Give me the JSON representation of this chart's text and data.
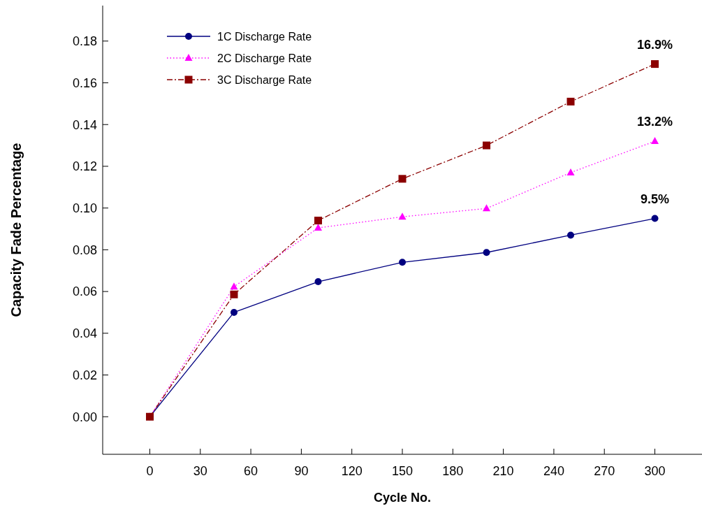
{
  "chart_data": {
    "type": "line",
    "xlabel": "Cycle No.",
    "ylabel": "Capacity Fade Percentage",
    "x": [
      0,
      50,
      100,
      150,
      200,
      250,
      300
    ],
    "series": [
      {
        "name": "1C Discharge Rate",
        "color": "#000080",
        "marker": "circle",
        "line_style": "solid",
        "values": [
          0,
          0.05,
          0.0647,
          0.074,
          0.0787,
          0.087,
          0.095
        ],
        "value_labels": [
          null,
          null,
          null,
          null,
          null,
          null,
          "9.5%"
        ]
      },
      {
        "name": "2C Discharge Rate",
        "color": "#ff00ff",
        "marker": "triangle",
        "line_style": "dotted",
        "values": [
          0,
          0.0623,
          0.0905,
          0.0958,
          0.0998,
          0.117,
          0.132
        ],
        "value_labels": [
          null,
          null,
          null,
          null,
          null,
          null,
          "13.2%"
        ]
      },
      {
        "name": "3C Discharge Rate",
        "color": "#8b0000",
        "marker": "square",
        "line_style": "dashdot",
        "values": [
          0,
          0.0586,
          0.094,
          0.114,
          0.13,
          0.151,
          0.169
        ],
        "value_labels": [
          null,
          null,
          null,
          null,
          null,
          null,
          "16.9%"
        ]
      }
    ],
    "xlim": [
      -28,
      328
    ],
    "xticks": [
      0,
      30,
      60,
      90,
      120,
      150,
      180,
      210,
      240,
      270,
      300
    ],
    "ylim": [
      -0.018,
      0.197
    ],
    "yticks": [
      {
        "value": 0,
        "label": "0.00"
      },
      {
        "value": 0.02,
        "label": "0.02"
      },
      {
        "value": 0.04,
        "label": "0.04"
      },
      {
        "value": 0.06,
        "label": "0.06"
      },
      {
        "value": 0.08,
        "label": "0.08"
      },
      {
        "value": 0.1,
        "label": "0.10"
      },
      {
        "value": 0.12,
        "label": "0.12"
      },
      {
        "value": 0.14,
        "label": "0.14"
      },
      {
        "value": 0.16,
        "label": "0.16"
      },
      {
        "value": 0.18,
        "label": "0.18"
      }
    ],
    "legend": "top left",
    "grid": false
  }
}
